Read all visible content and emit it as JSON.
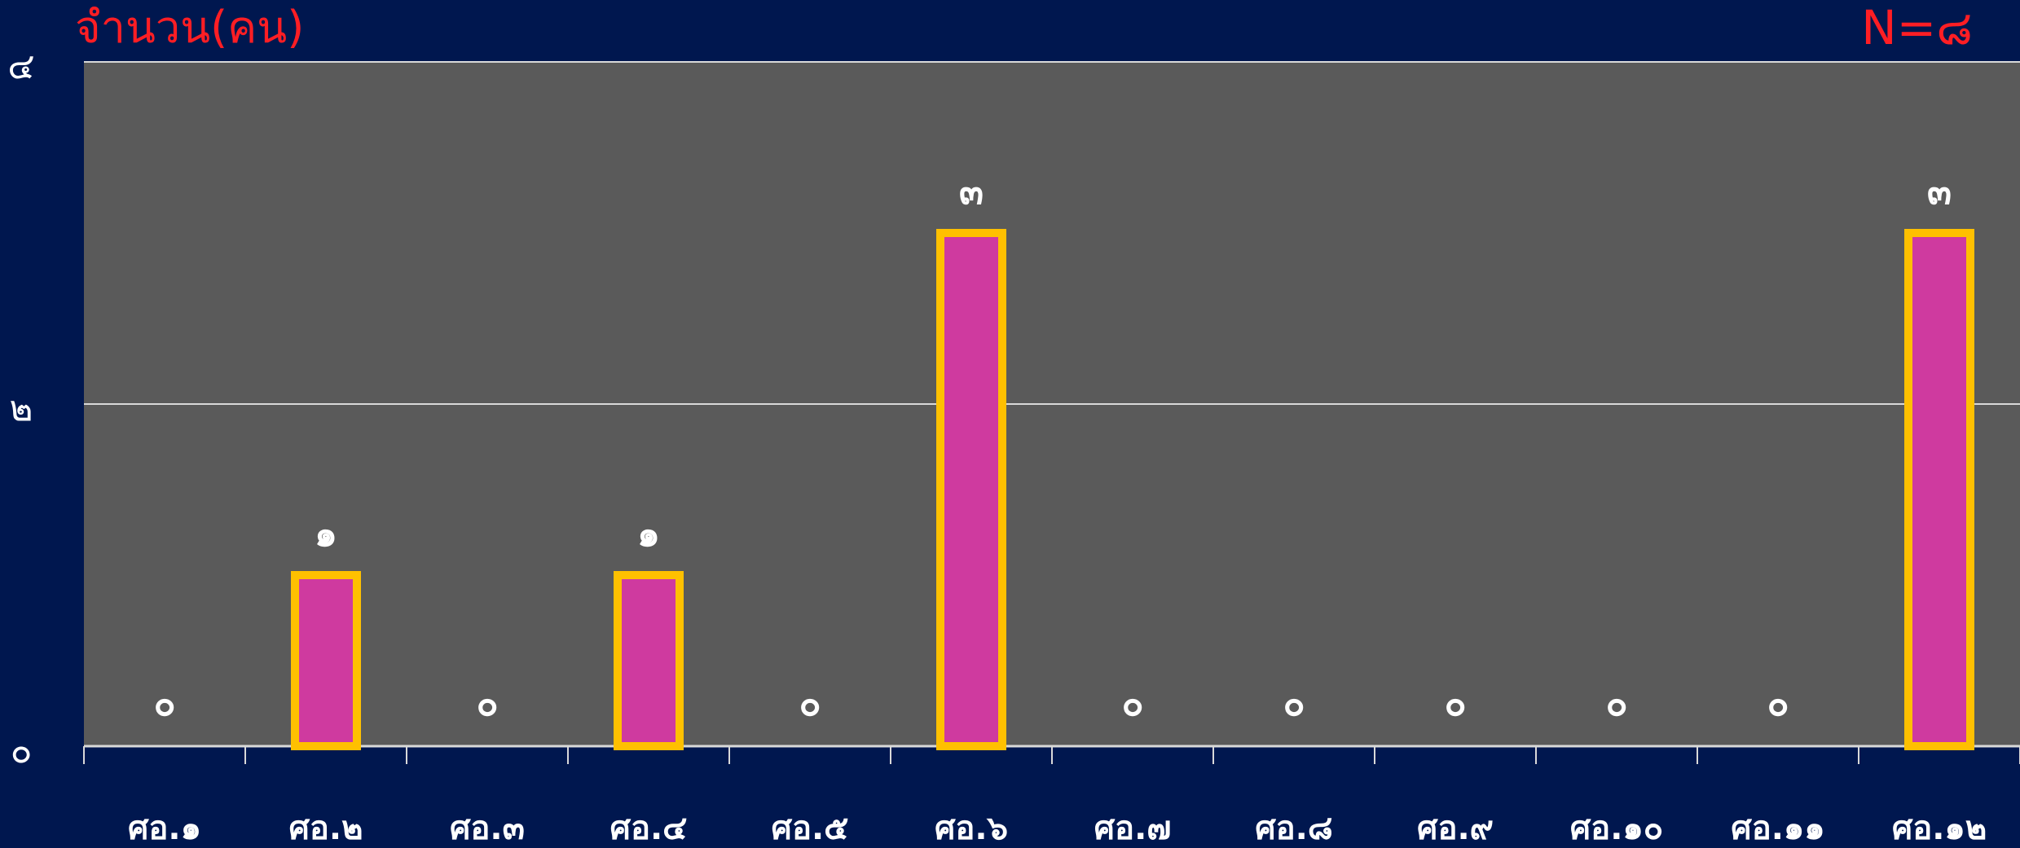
{
  "chart_data": {
    "type": "bar",
    "ylabel": "จำนวน(คน)",
    "annotation": "N=๘",
    "categories": [
      "ศอ.๑",
      "ศอ.๒",
      "ศอ.๓",
      "ศอ.๔",
      "ศอ.๕",
      "ศอ.๖",
      "ศอ.๗",
      "ศอ.๘",
      "ศอ.๙",
      "ศอ.๑๐",
      "ศอ.๑๑",
      "ศอ.๑๒"
    ],
    "values": [
      0,
      1,
      0,
      1,
      0,
      3,
      0,
      0,
      0,
      0,
      0,
      3
    ],
    "value_labels": [
      "๐",
      "๑",
      "๐",
      "๑",
      "๐",
      "๓",
      "๐",
      "๐",
      "๐",
      "๐",
      "๐",
      "๓"
    ],
    "ylim": [
      0,
      4
    ],
    "yticks": [
      0,
      2,
      4
    ],
    "ytick_labels": [
      "๐",
      "๒",
      "๔"
    ],
    "grid": true,
    "colors": {
      "background": "#00174f",
      "plot_area": "#5a5a5a",
      "bar_fill": "#cf3a9f",
      "bar_border": "#ffc000",
      "gridline": "#d9d9d9",
      "text": "#ffffff",
      "annotation": "#ff1e24"
    }
  }
}
